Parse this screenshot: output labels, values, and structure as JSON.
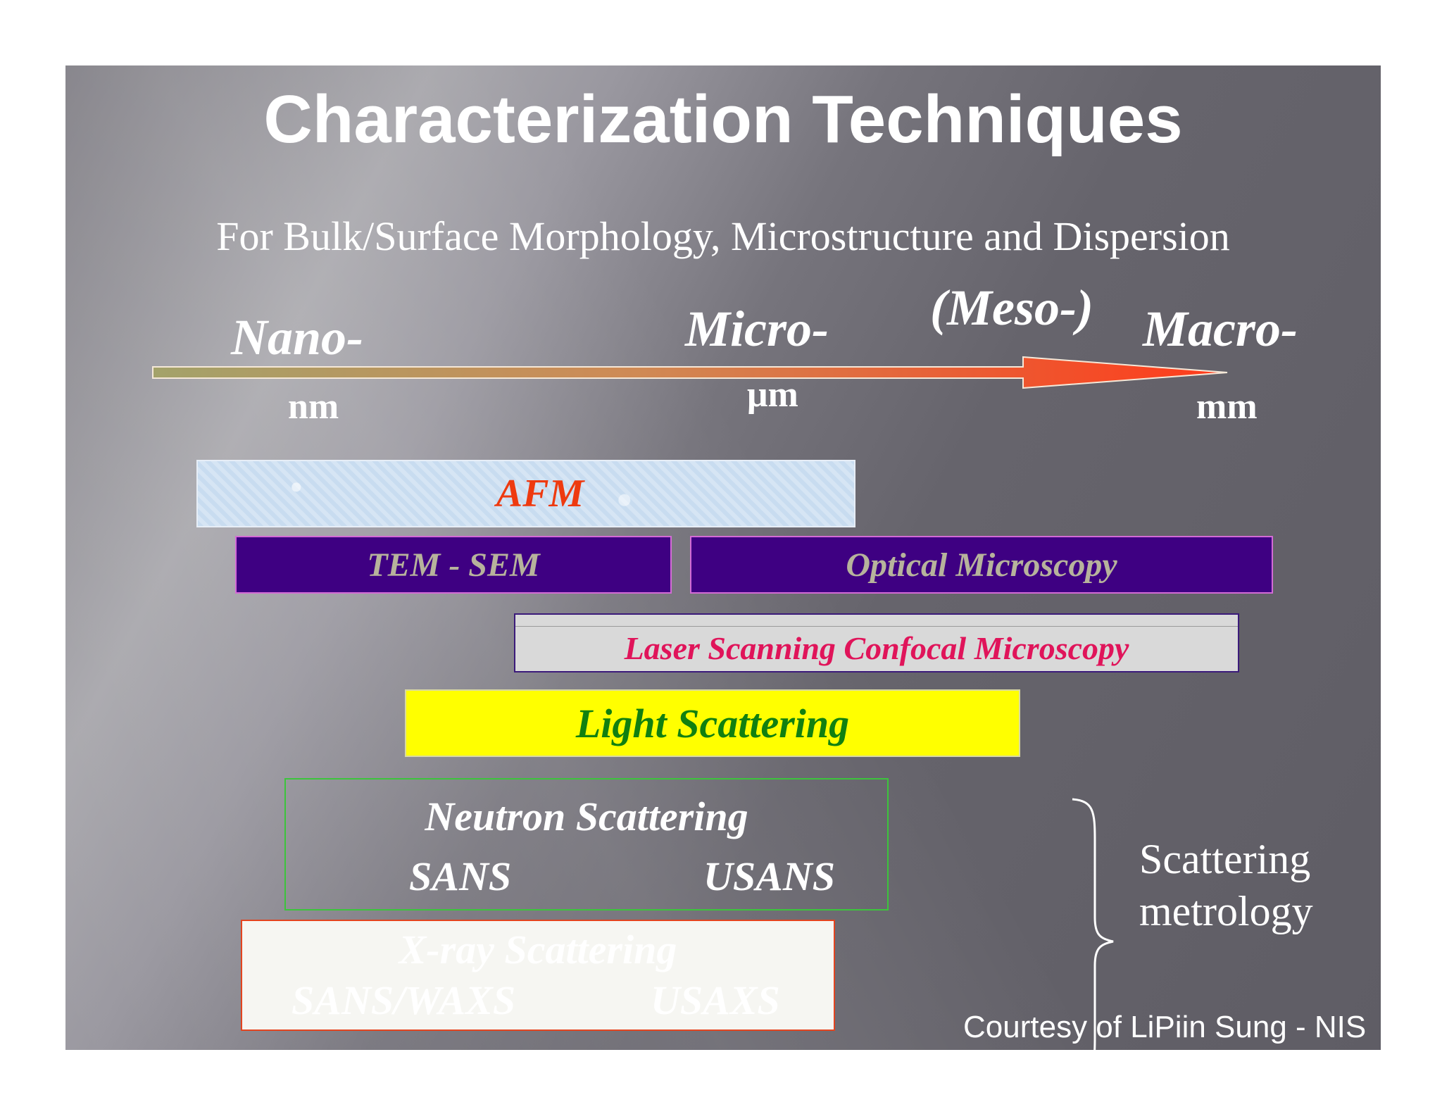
{
  "slide": {
    "title": "Characterization Techniques",
    "subtitle": "For Bulk/Surface Morphology, Microstructure and Dispersion"
  },
  "scale": {
    "nano": "Nano-",
    "micro": "Micro-",
    "meso": "(Meso-)",
    "macro": "Macro-",
    "unit_nm": "nm",
    "unit_um": "μm",
    "unit_mm": "mm"
  },
  "techniques": {
    "afm": "AFM",
    "tem_sem": "TEM - SEM",
    "optical": "Optical Microscopy",
    "laser": "Laser Scanning Confocal Microscopy",
    "light": "Light Scattering",
    "neutron": {
      "title": "Neutron Scattering",
      "sans": "SANS",
      "usans": "USANS"
    },
    "xray": {
      "title": "X-ray Scattering",
      "sans_waxs": "SANS/WAXS",
      "usaxs": "USAXS"
    }
  },
  "bracket_label_line1": "Scattering",
  "bracket_label_line2": "metrology",
  "courtesy": "Courtesy of  LiPiin Sung - NIS",
  "colors": {
    "afm_text": "#ee3a10",
    "purple_box": "#3e0082",
    "laser_text": "#e0145a",
    "light_box": "#ffff00",
    "light_text": "#118010",
    "neutron_border": "#3cc43c",
    "xray_border": "#e3441f"
  }
}
